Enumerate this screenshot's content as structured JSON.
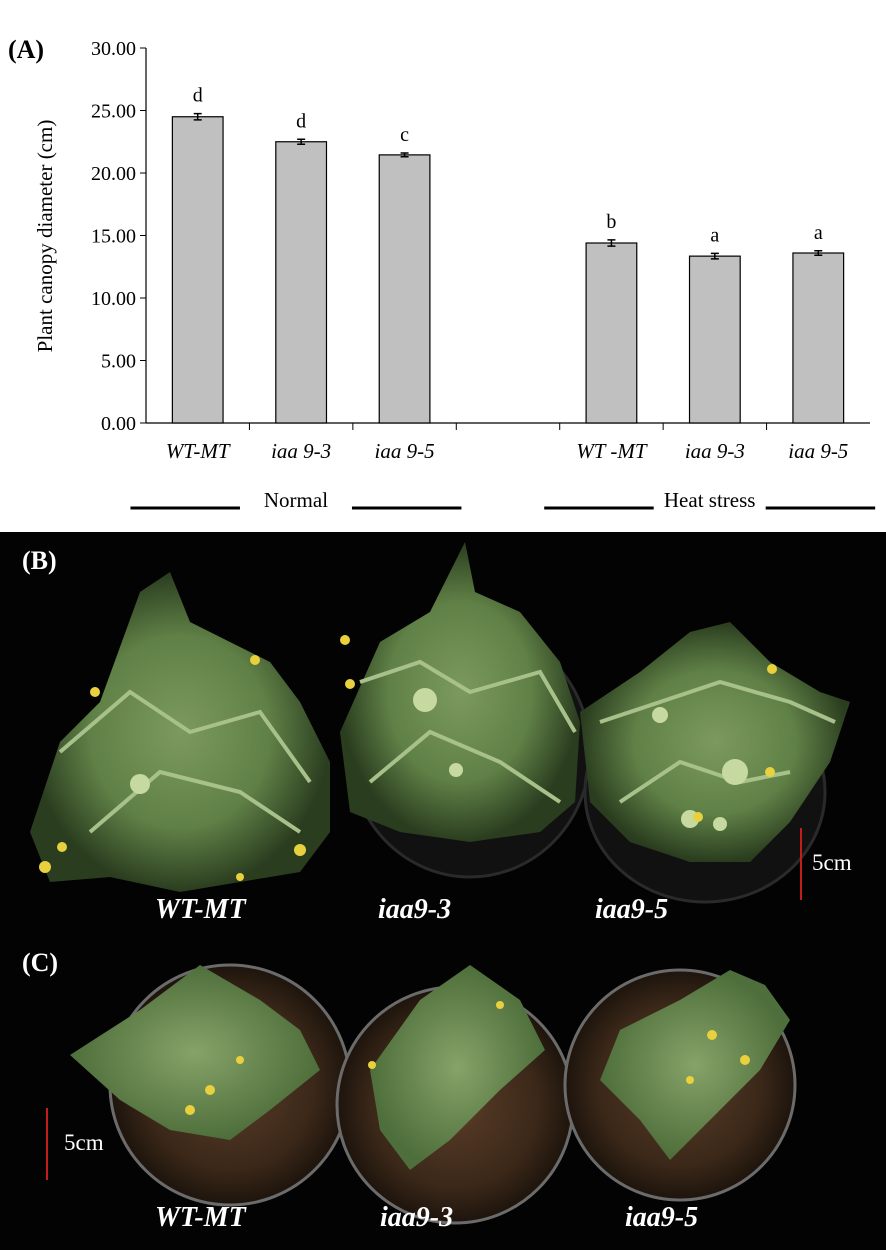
{
  "figure": {
    "panel_a_label": "(A)",
    "panel_b_label": "(B)",
    "panel_c_label": "(C)"
  },
  "chart_data": {
    "type": "bar",
    "title": "",
    "xlabel": "",
    "ylabel": "Plant canopy diameter (cm)",
    "ylim": [
      0,
      30
    ],
    "yticks": [
      "0.00",
      "5.00",
      "10.00",
      "15.00",
      "20.00",
      "25.00",
      "30.00"
    ],
    "grid": false,
    "bar_color": "#c0c0c0",
    "groups": [
      {
        "name": "Normal",
        "bars": [
          {
            "label": "WT-MT",
            "value": 24.5,
            "error": 0.25,
            "letter": "d"
          },
          {
            "label": "iaa 9-3",
            "value": 22.5,
            "error": 0.2,
            "letter": "d"
          },
          {
            "label": "iaa 9-5",
            "value": 21.45,
            "error": 0.15,
            "letter": "c"
          }
        ]
      },
      {
        "name": "Heat stress",
        "bars": [
          {
            "label": "WT -MT",
            "value": 14.4,
            "error": 0.25,
            "letter": "b"
          },
          {
            "label": "iaa 9-3",
            "value": 13.35,
            "error": 0.22,
            "letter": "a"
          },
          {
            "label": "iaa 9-5",
            "value": 13.6,
            "error": 0.18,
            "letter": "a"
          }
        ]
      }
    ]
  },
  "photos": {
    "panel_b": {
      "captions": [
        "WT-MT",
        "iaa9-3",
        "iaa9-5"
      ],
      "scale_label": "5cm",
      "scale_color": "#c21d1d"
    },
    "panel_c": {
      "captions": [
        "WT-MT",
        "iaa9-3",
        "iaa9-5"
      ],
      "scale_label": "5cm",
      "scale_color": "#c21d1d"
    }
  }
}
